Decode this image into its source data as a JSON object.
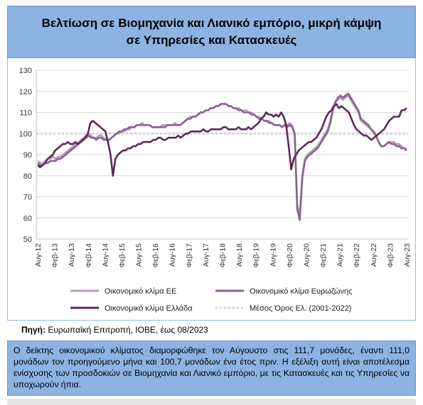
{
  "header": {
    "title_line1": "Βελτίωση σε Βιομηχανία και Λιανικό εμπόριο, μικρή κάμψη",
    "title_line2": "σε Υπηρεσίες και Κατασκευές"
  },
  "source": {
    "label": "Πηγή:",
    "text": "Ευρωπαϊκή Επιτροπή, ΙΟΒΕ, έως 08/2023"
  },
  "note": {
    "text": "Ο δείκτης οικονομικού κλίματος διαμορφώθηκε τον Αύγουστο στις 111,7 μονάδες, έναντι 111,0 μονάδων τον προηγούμενο μήνα και 100,7 μονάδων ένα έτος πριν. Η εξέλιξη αυτή είναι αποτέλεσμα ενίσχυσης των προσδοκιών σε Βιομηχανία και Λιανικό εμπόριο, με τις Κατασκευές και τις Υπηρεσίες να υποχωρούν ήπια."
  },
  "colors": {
    "eu": "#b5a0b8",
    "euro": "#8b6090",
    "greece": "#5a2a5a",
    "average": "#d9d0da",
    "header_bg": "#8db3e2"
  },
  "chart_data": {
    "type": "line",
    "ylim": [
      50,
      130
    ],
    "yticks": [
      50,
      60,
      70,
      80,
      90,
      100,
      110,
      120,
      130
    ],
    "x_tick_labels": [
      "Αυγ-12",
      "Φεβ-13",
      "Αυγ-13",
      "Φεβ-14",
      "Αυγ-14",
      "Φεβ-15",
      "Αυγ-15",
      "Φεβ-16",
      "Αυγ-16",
      "Φεβ-17",
      "Αυγ-17",
      "Φεβ-18",
      "Αυγ-18",
      "Φεβ-19",
      "Αυγ-19",
      "Φεβ-20",
      "Αυγ-20",
      "Φεβ-21",
      "Αυγ-21",
      "Φεβ-22",
      "Αυγ-22",
      "Φεβ-23",
      "Αυγ-23"
    ],
    "x_start": "Αυγ-12",
    "x_end": "Αυγ-23",
    "legend_position": "bottom",
    "series": [
      {
        "name": "Οικονομικό κλίμα ΕΕ",
        "key": "eu",
        "values": [
          87,
          86,
          86,
          87,
          88,
          88,
          89,
          88,
          89,
          89,
          90,
          91,
          92,
          93,
          94,
          95,
          96,
          97,
          98,
          99,
          100,
          99,
          98,
          98,
          99,
          99,
          98,
          97,
          97,
          98,
          99,
          100,
          100,
          101,
          101,
          102,
          102,
          103,
          103,
          104,
          104,
          105,
          104,
          104,
          104,
          103,
          103,
          103,
          103,
          104,
          104,
          104,
          104,
          104,
          105,
          104,
          104,
          105,
          106,
          107,
          108,
          108,
          108,
          109,
          110,
          110,
          111,
          111,
          112,
          112,
          113,
          113,
          114,
          114,
          114,
          113,
          113,
          112,
          112,
          112,
          111,
          111,
          111,
          110,
          110,
          109,
          108,
          108,
          107,
          106,
          106,
          106,
          105,
          104,
          104,
          104,
          103,
          104,
          104,
          105,
          104,
          100,
          66,
          62,
          80,
          88,
          90,
          91,
          92,
          93,
          94,
          96,
          98,
          100,
          102,
          106,
          112,
          115,
          116,
          117,
          116,
          117,
          118,
          116,
          114,
          112,
          110,
          106,
          105,
          104,
          103,
          102,
          100,
          99,
          96,
          94,
          94,
          95,
          96,
          96,
          96,
          95,
          95,
          94,
          93,
          93
        ]
      },
      {
        "name": "Οικονομικό κλίμα Ευρωζώνης",
        "key": "euro",
        "values": [
          86,
          85,
          85,
          86,
          86,
          87,
          87,
          87,
          88,
          88,
          89,
          90,
          91,
          92,
          93,
          94,
          95,
          96,
          97,
          98,
          99,
          98,
          98,
          97,
          98,
          98,
          97,
          97,
          97,
          98,
          99,
          100,
          101,
          101,
          102,
          102,
          103,
          103,
          103,
          104,
          104,
          104,
          104,
          104,
          104,
          103,
          103,
          103,
          103,
          103,
          103,
          104,
          104,
          104,
          104,
          104,
          104,
          105,
          106,
          107,
          107,
          108,
          108,
          109,
          110,
          110,
          111,
          111,
          112,
          112,
          113,
          113,
          114,
          114,
          114,
          113,
          113,
          112,
          112,
          111,
          111,
          110,
          110,
          110,
          109,
          109,
          108,
          107,
          107,
          106,
          106,
          105,
          105,
          104,
          104,
          104,
          103,
          104,
          103,
          104,
          103,
          100,
          64,
          59,
          79,
          87,
          89,
          90,
          91,
          92,
          93,
          95,
          97,
          99,
          101,
          105,
          111,
          115,
          117,
          118,
          117,
          118,
          119,
          117,
          115,
          113,
          111,
          107,
          106,
          105,
          104,
          102,
          101,
          99,
          96,
          94,
          94,
          95,
          96,
          95,
          95,
          94,
          94,
          93,
          93,
          92
        ]
      },
      {
        "name": "Οικονομικό κλίμα Ελλάδα",
        "key": "greece",
        "values": [
          85,
          84,
          85,
          86,
          88,
          89,
          90,
          92,
          93,
          94,
          95,
          95,
          96,
          95,
          95,
          96,
          95,
          96,
          97,
          98,
          100,
          105,
          106,
          105,
          104,
          103,
          102,
          101,
          96,
          90,
          80,
          88,
          90,
          91,
          92,
          92,
          93,
          93,
          94,
          94,
          95,
          95,
          96,
          96,
          96,
          96,
          97,
          97,
          98,
          98,
          97,
          97,
          98,
          98,
          98,
          98,
          99,
          98,
          99,
          100,
          100,
          101,
          101,
          101,
          101,
          101,
          102,
          101,
          101,
          102,
          102,
          102,
          102,
          102,
          103,
          103,
          102,
          102,
          102,
          102,
          103,
          102,
          102,
          102,
          103,
          102,
          103,
          104,
          105,
          107,
          108,
          110,
          109,
          109,
          108,
          109,
          108,
          110,
          108,
          104,
          94,
          83,
          88,
          90,
          92,
          93,
          94,
          95,
          96,
          96,
          97,
          98,
          100,
          102,
          105,
          108,
          110,
          111,
          113,
          114,
          112,
          113,
          112,
          111,
          110,
          107,
          104,
          102,
          101,
          100,
          99,
          99,
          98,
          97,
          98,
          99,
          100,
          101,
          102,
          104,
          106,
          107,
          108,
          108,
          108,
          111,
          111,
          112
        ]
      },
      {
        "name": "Μέσος Όρος Ελ. (2001-2022)",
        "key": "average",
        "values": [
          100,
          100
        ]
      }
    ]
  }
}
